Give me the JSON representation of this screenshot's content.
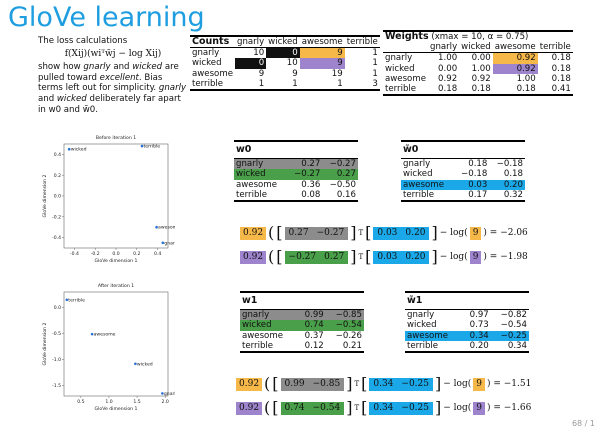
{
  "title": "GloVe learning",
  "intro": {
    "line1": "The loss calculations",
    "formula": "f(Xij)(wiᵀw̃j − log Xij)",
    "text_a": "show how ",
    "w1": "gnarly",
    "text_b": " and ",
    "w2": "wicked",
    "text_c": " are pulled toward ",
    "w3": "excellent",
    "text_d": ". Bias terms left out for simplicity. ",
    "w4": "gnarly",
    "text_e": " and ",
    "w5": "wicked",
    "text_f": " deliberately far apart in w0 and w̃0."
  },
  "counts": {
    "title": "Counts",
    "cols": [
      "gnarly",
      "wicked",
      "awesome",
      "terrible"
    ],
    "rows": [
      {
        "label": "gnarly",
        "vals": [
          "10",
          "0",
          "9",
          "1"
        ]
      },
      {
        "label": "wicked",
        "vals": [
          "0",
          "10",
          "9",
          "1"
        ]
      },
      {
        "label": "awesome",
        "vals": [
          "9",
          "9",
          "19",
          "1"
        ]
      },
      {
        "label": "terrible",
        "vals": [
          "1",
          "1",
          "1",
          "3"
        ]
      }
    ]
  },
  "weights": {
    "title": "Weights",
    "params": "(xmax = 10, α = 0.75)",
    "cols": [
      "gnarly",
      "wicked",
      "awesome",
      "terrible"
    ],
    "rows": [
      {
        "label": "gnarly",
        "vals": [
          "1.00",
          "0.00",
          "0.92",
          "0.18"
        ]
      },
      {
        "label": "wicked",
        "vals": [
          "0.00",
          "1.00",
          "0.92",
          "0.18"
        ]
      },
      {
        "label": "awesome",
        "vals": [
          "0.92",
          "0.92",
          "1.00",
          "0.18"
        ]
      },
      {
        "label": "terrible",
        "vals": [
          "0.18",
          "0.18",
          "0.18",
          "0.41"
        ]
      }
    ]
  },
  "w0": {
    "title": "w0",
    "rows": [
      {
        "label": "gnarly",
        "a": "0.27",
        "b": "−0.27"
      },
      {
        "label": "wicked",
        "a": "−0.27",
        "b": "0.27"
      },
      {
        "label": "awesome",
        "a": "0.36",
        "b": "−0.50"
      },
      {
        "label": "terrible",
        "a": "0.08",
        "b": "0.16"
      }
    ]
  },
  "wt0": {
    "title": "w̃0",
    "rows": [
      {
        "label": "gnarly",
        "a": "0.18",
        "b": "−0.18"
      },
      {
        "label": "wicked",
        "a": "−0.18",
        "b": "0.18"
      },
      {
        "label": "awesome",
        "a": "0.03",
        "b": "0.20"
      },
      {
        "label": "terrible",
        "a": "0.17",
        "b": "0.32"
      }
    ]
  },
  "w1": {
    "title": "w1",
    "rows": [
      {
        "label": "gnarly",
        "a": "0.99",
        "b": "−0.85"
      },
      {
        "label": "wicked",
        "a": "0.74",
        "b": "−0.54"
      },
      {
        "label": "awesome",
        "a": "0.37",
        "b": "−0.26"
      },
      {
        "label": "terrible",
        "a": "0.12",
        "b": "0.21"
      }
    ]
  },
  "wt1": {
    "title": "w̃1",
    "rows": [
      {
        "label": "gnarly",
        "a": "0.97",
        "b": "−0.82"
      },
      {
        "label": "wicked",
        "a": "0.73",
        "b": "−0.54"
      },
      {
        "label": "awesome",
        "a": "0.34",
        "b": "−0.25"
      },
      {
        "label": "terrible",
        "a": "0.20",
        "b": "0.34"
      }
    ]
  },
  "eqs": [
    {
      "weight": "0.92",
      "v1a": "0.27",
      "v1b": "−0.27",
      "v2a": "0.03",
      "v2b": "0.20",
      "log": "− log(",
      "count": "9",
      "result": ") = −2.06"
    },
    {
      "weight": "0.92",
      "v1a": "−0.27",
      "v1b": "0.27",
      "v2a": "0.03",
      "v2b": "0.20",
      "log": "− log(",
      "count": "9",
      "result": ") = −1.98"
    },
    {
      "weight": "0.92",
      "v1a": "0.99",
      "v1b": "−0.85",
      "v2a": "0.34",
      "v2b": "−0.25",
      "log": "− log(",
      "count": "9",
      "result": ") = −1.51"
    },
    {
      "weight": "0.92",
      "v1a": "0.74",
      "v1b": "−0.54",
      "v2a": "0.34",
      "v2b": "−0.25",
      "log": "− log(",
      "count": "9",
      "result": ") = −1.66"
    }
  ],
  "transpose": "T",
  "page_number": "68 / 1",
  "chart_data": [
    {
      "type": "scatter",
      "title": "Before iteration 1",
      "xlabel": "GloVe dimension 1",
      "ylabel": "GloVe dimension 2",
      "xlim": [
        -0.5,
        0.5
      ],
      "ylim": [
        -0.5,
        0.5
      ],
      "xticks": [
        "-0.4",
        "-0.2",
        "0.0",
        "0.2",
        "0.4"
      ],
      "yticks": [
        "0.4",
        "0.2",
        "0.0",
        "-0.2",
        "-0.4"
      ],
      "points": [
        {
          "label": "wicked",
          "x": -0.45,
          "y": 0.45
        },
        {
          "label": "terrible",
          "x": 0.25,
          "y": 0.48
        },
        {
          "label": "awesome",
          "x": 0.39,
          "y": -0.3
        },
        {
          "label": "gnarly",
          "x": 0.45,
          "y": -0.45
        }
      ]
    },
    {
      "type": "scatter",
      "title": "After iteration 1",
      "xlabel": "GloVe dimension 1",
      "ylabel": "GloVe dimension 2",
      "xlim": [
        0.2,
        2.05
      ],
      "ylim": [
        -1.7,
        0.3
      ],
      "xticks": [
        "0.5",
        "1.0",
        "1.5",
        "2.0"
      ],
      "yticks": [
        "0.0",
        "-0.5",
        "-1.0",
        "-1.5"
      ],
      "points": [
        {
          "label": "terrible",
          "x": 0.25,
          "y": 0.15
        },
        {
          "label": "awesome",
          "x": 0.7,
          "y": -0.51
        },
        {
          "label": "wicked",
          "x": 1.47,
          "y": -1.08
        },
        {
          "label": "gnarly",
          "x": 1.95,
          "y": -1.65
        }
      ]
    }
  ]
}
